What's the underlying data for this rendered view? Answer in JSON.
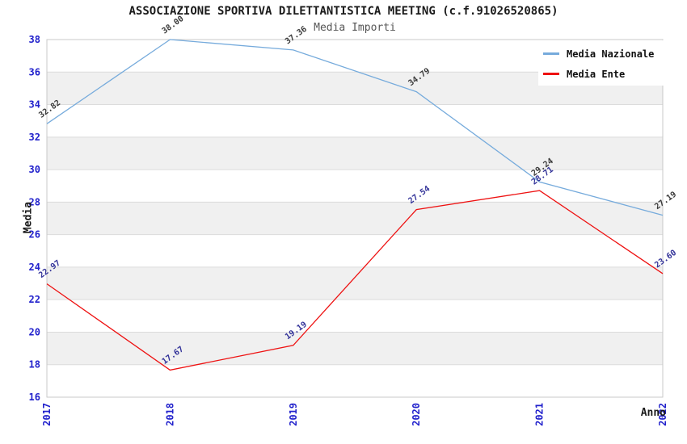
{
  "chart_data": {
    "type": "line",
    "title": "ASSOCIAZIONE SPORTIVA DILETTANTISTICA MEETING (c.f.91026520865)",
    "subtitle": "Media Importi",
    "xlabel": "Anno",
    "ylabel": "Media",
    "x": [
      "2017",
      "2018",
      "2019",
      "2020",
      "2021",
      "2022"
    ],
    "series": [
      {
        "name": "Media Nazionale",
        "color": "#76abdc",
        "label_color": "#3a3a3a",
        "values": [
          32.82,
          38.0,
          37.36,
          34.79,
          29.24,
          27.19
        ],
        "point_labels": [
          "32.82",
          "38.00",
          "37.36",
          "34.79",
          "29.24",
          "27.19"
        ]
      },
      {
        "name": "Media Ente",
        "color": "#ee1111",
        "label_color": "#333399",
        "values": [
          22.97,
          17.67,
          19.19,
          27.54,
          28.71,
          23.6
        ],
        "point_labels": [
          "22.97",
          "17.67",
          "19.19",
          "27.54",
          "28.71",
          "23.60"
        ]
      }
    ],
    "ylim": [
      16,
      38
    ],
    "ytick_step": 2,
    "tick_color": "#2222cc",
    "grid": "horizontal",
    "legend_position": "top-right"
  }
}
